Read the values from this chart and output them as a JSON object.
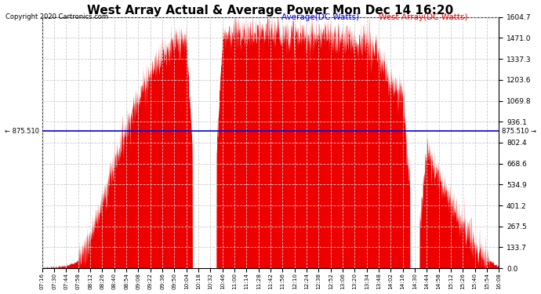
{
  "title": "West Array Actual & Average Power Mon Dec 14 16:20",
  "copyright": "Copyright 2020 Cartronics.com",
  "average_label": "Average(DC Watts)",
  "west_label": "West Array(DC Watts)",
  "average_value": 875.51,
  "ymax": 1604.7,
  "ymin": 0.0,
  "yticks_right": [
    0.0,
    133.7,
    267.5,
    401.2,
    534.9,
    668.6,
    802.4,
    936.1,
    1069.8,
    1203.6,
    1337.3,
    1471.0,
    1604.7
  ],
  "background_color": "#ffffff",
  "fill_color": "#ee0000",
  "avg_line_color": "#0000dd",
  "grid_color": "#cccccc",
  "xtick_labels": [
    "07:16",
    "07:30",
    "07:44",
    "07:58",
    "08:12",
    "08:26",
    "08:40",
    "08:54",
    "09:08",
    "09:22",
    "09:36",
    "09:50",
    "10:04",
    "10:18",
    "10:32",
    "10:46",
    "11:00",
    "11:14",
    "11:28",
    "11:42",
    "11:56",
    "12:10",
    "12:24",
    "12:38",
    "12:52",
    "13:06",
    "13:20",
    "13:34",
    "13:48",
    "14:02",
    "14:16",
    "14:30",
    "14:44",
    "14:58",
    "15:12",
    "15:26",
    "15:40",
    "15:54",
    "16:08"
  ],
  "n_fine": 2000,
  "seed": 7,
  "avg_label_color": "#0000dd",
  "west_label_color": "#ee0000",
  "left_avg_label": "← 875.510",
  "right_avg_label": "875.510 →"
}
